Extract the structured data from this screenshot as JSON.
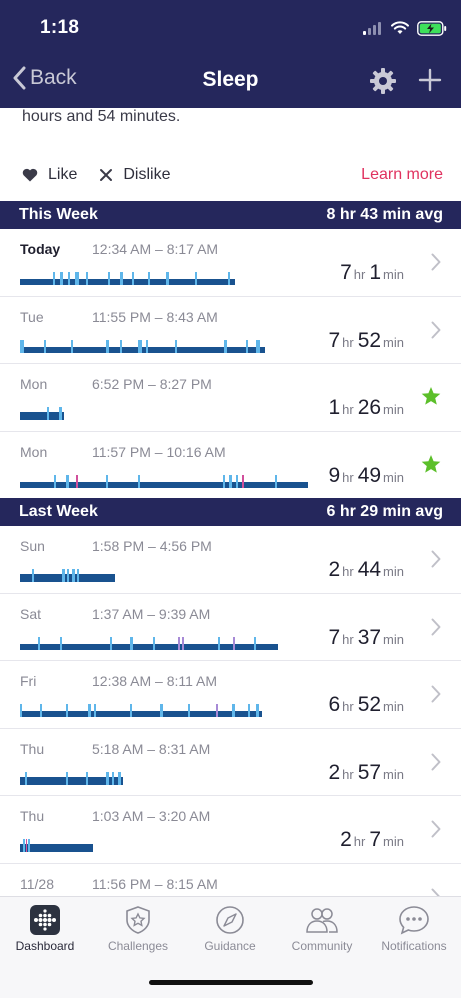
{
  "status": {
    "time": "1:18"
  },
  "nav": {
    "back_label": "Back",
    "title": "Sleep"
  },
  "summary_text": "hours and 54 minutes.",
  "feedback": {
    "like_label": "Like",
    "dislike_label": "Dislike",
    "learn_more_label": "Learn more"
  },
  "this_week": {
    "title": "This Week",
    "avg": "8 hr 43 min avg",
    "rows": [
      {
        "day": "Today",
        "range": "12:34 AM – 8:17 AM",
        "hours": "7",
        "minutes": "1",
        "hr_unit": "hr",
        "min_unit": "min",
        "trailing": "chevron"
      },
      {
        "day": "Tue",
        "range": "11:55 PM – 8:43 AM",
        "hours": "7",
        "minutes": "52",
        "hr_unit": "hr",
        "min_unit": "min",
        "trailing": "chevron"
      },
      {
        "day": "Mon",
        "range": "6:52 PM – 8:27 PM",
        "hours": "1",
        "minutes": "26",
        "hr_unit": "hr",
        "min_unit": "min",
        "trailing": "star"
      },
      {
        "day": "Mon",
        "range": "11:57 PM – 10:16 AM",
        "hours": "9",
        "minutes": "49",
        "hr_unit": "hr",
        "min_unit": "min",
        "trailing": "star"
      }
    ]
  },
  "last_week": {
    "title": "Last Week",
    "avg": "6 hr 29 min avg",
    "rows": [
      {
        "day": "Sun",
        "range": "1:58 PM – 4:56 PM",
        "hours": "2",
        "minutes": "44",
        "hr_unit": "hr",
        "min_unit": "min",
        "trailing": "chevron"
      },
      {
        "day": "Sat",
        "range": "1:37 AM – 9:39 AM",
        "hours": "7",
        "minutes": "37",
        "hr_unit": "hr",
        "min_unit": "min",
        "trailing": "chevron"
      },
      {
        "day": "Fri",
        "range": "12:38 AM – 8:11 AM",
        "hours": "6",
        "minutes": "52",
        "hr_unit": "hr",
        "min_unit": "min",
        "trailing": "chevron"
      },
      {
        "day": "Thu",
        "range": "5:18 AM – 8:31 AM",
        "hours": "2",
        "minutes": "57",
        "hr_unit": "hr",
        "min_unit": "min",
        "trailing": "chevron"
      },
      {
        "day": "Thu",
        "range": "1:03 AM – 3:20 AM",
        "hours": "2",
        "minutes": "7",
        "hr_unit": "hr",
        "min_unit": "min",
        "trailing": "chevron"
      },
      {
        "day": "11/28",
        "range": "11:56 PM – 8:15 AM",
        "hours": "",
        "minutes": "",
        "hr_unit": "",
        "min_unit": "",
        "trailing": "chevron"
      }
    ]
  },
  "tabs": [
    {
      "label": "Dashboard",
      "icon": "dashboard-icon",
      "active": true
    },
    {
      "label": "Challenges",
      "icon": "challenges-icon",
      "active": false
    },
    {
      "label": "Guidance",
      "icon": "guidance-icon",
      "active": false
    },
    {
      "label": "Community",
      "icon": "community-icon",
      "active": false
    },
    {
      "label": "Notifications",
      "icon": "notifications-icon",
      "active": false
    }
  ],
  "colors": {
    "header_bg": "#25275c",
    "sleep_bar": "#19528f",
    "awake_mark": "#5fb6ea",
    "restless_mark": "#d14f9c",
    "star": "#5cbf2a",
    "learn_more": "#e0325f"
  }
}
